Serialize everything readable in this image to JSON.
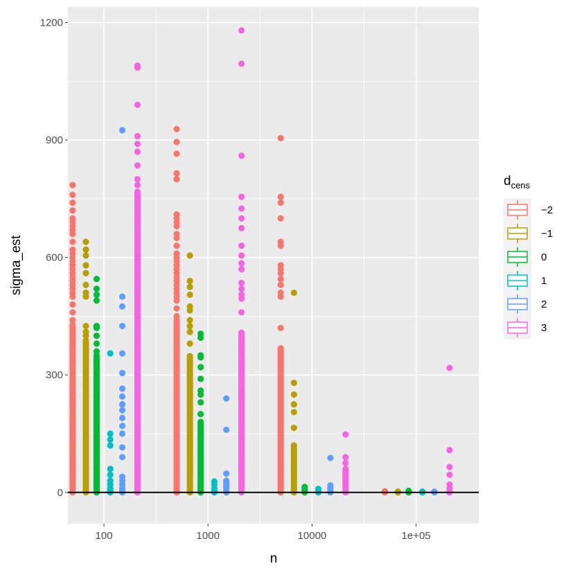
{
  "chart_data": {
    "type": "scatter",
    "title": "",
    "xlabel": "n",
    "ylabel": "sigma_est",
    "x_scale": "log10",
    "xlim": [
      45,
      400000
    ],
    "ylim": [
      -80,
      1240
    ],
    "x_ticks": [
      {
        "value": 100,
        "label": "100"
      },
      {
        "value": 1000,
        "label": "1000"
      },
      {
        "value": 10000,
        "label": "10000"
      },
      {
        "value": 100000,
        "label": "1e+05"
      }
    ],
    "y_ticks": [
      {
        "value": 0,
        "label": "0"
      },
      {
        "value": 300,
        "label": "300"
      },
      {
        "value": 600,
        "label": "600"
      },
      {
        "value": 900,
        "label": "900"
      },
      {
        "value": 1200,
        "label": "1200"
      }
    ],
    "hline": 0,
    "grid": true,
    "panel_background": "#ebebeb",
    "legend": {
      "title_main": "d",
      "title_sub": "cens",
      "placement": "right"
    },
    "series": [
      {
        "name": "−2",
        "color": "#F8766D",
        "points": [
          {
            "n": 50,
            "stack": [
              0,
              430
            ]
          },
          {
            "n": 50,
            "values": [
              440,
              460,
              480,
              500,
              510,
              520,
              530,
              540,
              550,
              560,
              570,
              580,
              590,
              600,
              610,
              620,
              640,
              660,
              670,
              680,
              690,
              700,
              720,
              740,
              760,
              785
            ]
          },
          {
            "n": 500,
            "stack": [
              0,
              440
            ]
          },
          {
            "n": 500,
            "values": [
              450,
              470,
              490,
              500,
              510,
              520,
              530,
              540,
              550,
              560,
              570,
              580,
              590,
              600,
              610,
              630,
              650,
              660,
              680,
              690,
              700,
              710,
              800,
              815,
              865,
              895,
              928
            ]
          },
          {
            "n": 5000,
            "stack": [
              0,
              370
            ]
          },
          {
            "n": 5000,
            "values": [
              420,
              500,
              510,
              530,
              545,
              560,
              570,
              580,
              630,
              640,
              700,
              740,
              755,
              905
            ]
          },
          {
            "n": 50000,
            "values": [
              0,
              2,
              3
            ]
          }
        ]
      },
      {
        "name": "−1",
        "color": "#B79F00",
        "points": [
          {
            "n": 67,
            "stack": [
              0,
              390
            ]
          },
          {
            "n": 67,
            "values": [
              400,
              410,
              425,
              500,
              510,
              530,
              560,
              580,
              605,
              620,
              640
            ]
          },
          {
            "n": 670,
            "stack": [
              0,
              350
            ]
          },
          {
            "n": 670,
            "values": [
              380,
              410,
              425,
              440,
              465,
              475,
              505,
              525,
              540,
              605
            ]
          },
          {
            "n": 6700,
            "stack": [
              0,
              120
            ]
          },
          {
            "n": 6700,
            "values": [
              165,
              205,
              225,
              250,
              280,
              510
            ]
          },
          {
            "n": 67000,
            "values": [
              0,
              2
            ]
          }
        ]
      },
      {
        "name": "0",
        "color": "#00BA38",
        "points": [
          {
            "n": 85,
            "stack": [
              0,
              345
            ]
          },
          {
            "n": 85,
            "values": [
              350,
              360,
              380,
              400,
              420,
              425,
              490,
              505,
              520,
              545
            ]
          },
          {
            "n": 850,
            "stack": [
              0,
              180
            ]
          },
          {
            "n": 850,
            "values": [
              200,
              230,
              250,
              260,
              290,
              320,
              345,
              350,
              395,
              405
            ]
          },
          {
            "n": 8500,
            "values": [
              0,
              3,
              6,
              10,
              14
            ]
          },
          {
            "n": 85000,
            "values": [
              0,
              2,
              4
            ]
          }
        ]
      },
      {
        "name": "1",
        "color": "#00BFC4",
        "points": [
          {
            "n": 115,
            "values": [
              0,
              5,
              10,
              20,
              30,
              45,
              60,
              120,
              135,
              150,
              355
            ]
          },
          {
            "n": 1150,
            "values": [
              0,
              5,
              10,
              20,
              28
            ]
          },
          {
            "n": 11500,
            "values": [
              0,
              4,
              9
            ]
          },
          {
            "n": 115000,
            "values": [
              0,
              2
            ]
          }
        ]
      },
      {
        "name": "2",
        "color": "#619CFF",
        "points": [
          {
            "n": 150,
            "values": [
              0,
              5,
              10,
              20,
              30,
              40,
              90,
              115,
              150,
              170,
              190,
              210,
              225,
              245,
              265,
              305,
              355,
              425,
              475,
              500,
              925
            ]
          },
          {
            "n": 1500,
            "values": [
              0,
              5,
              10,
              15,
              20,
              25,
              30,
              48,
              160,
              240
            ]
          },
          {
            "n": 15000,
            "values": [
              0,
              4,
              10,
              18,
              88
            ]
          },
          {
            "n": 150000,
            "values": [
              0,
              2
            ]
          }
        ]
      },
      {
        "name": "3",
        "color": "#F564E3",
        "points": [
          {
            "n": 210,
            "stack": [
              0,
              770
            ]
          },
          {
            "n": 210,
            "values": [
              785,
              800,
              835,
              870,
              890,
              910,
              990,
              1085,
              1090
            ]
          },
          {
            "n": 2100,
            "stack": [
              0,
              410
            ]
          },
          {
            "n": 2100,
            "values": [
              460,
              495,
              505,
              520,
              535,
              570,
              585,
              605,
              630,
              675,
              700,
              725,
              755,
              860,
              1095,
              1180
            ]
          },
          {
            "n": 21000,
            "stack": [
              0,
              60
            ]
          },
          {
            "n": 21000,
            "values": [
              75,
              90,
              148
            ]
          },
          {
            "n": 210000,
            "values": [
              0,
              5,
              10,
              20,
              45,
              65,
              108,
              318
            ]
          }
        ]
      }
    ]
  }
}
